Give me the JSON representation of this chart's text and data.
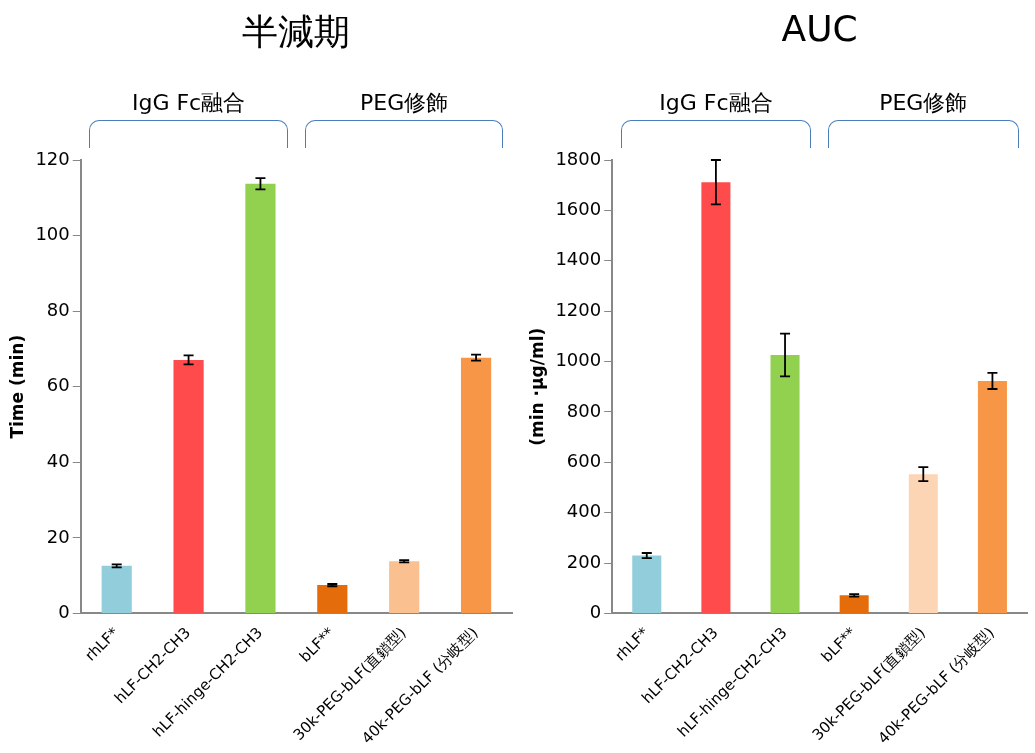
{
  "chart_data": [
    {
      "type": "bar",
      "title": "半減期",
      "ylabel": "Time (min)",
      "annotations": [
        "IgG Fc融合",
        "PEG修飾"
      ],
      "categories": [
        "rhLF*",
        "hLF-CH2-CH3",
        "hLF-hinge-CH2-CH3",
        "bLF**",
        "30k-PEG-bLF(直鎖型)",
        "40k-PEG-bLF (分岐型)"
      ],
      "values": [
        12.6,
        67.1,
        113.7,
        7.5,
        13.8,
        67.7
      ],
      "errors": [
        0.4,
        1.2,
        1.5,
        0.3,
        0.3,
        0.8
      ],
      "colors": [
        "#92cddc",
        "#ff4b4b",
        "#92d050",
        "#e46c0a",
        "#fac090",
        "#f79646"
      ],
      "ylim": [
        0,
        120
      ],
      "yticks": [
        0,
        20,
        40,
        60,
        80,
        100,
        120
      ],
      "grid": false,
      "legend": false
    },
    {
      "type": "bar",
      "title": "AUC",
      "ylabel": "(min ·μg/ml)",
      "annotations": [
        "IgG Fc融合",
        "PEG修飾"
      ],
      "categories": [
        "rhLF*",
        "hLF-CH2-CH3",
        "hLF-hinge-CH2-CH3",
        "bLF**",
        "30k-PEG-bLF(直鎖型)",
        "40k-PEG-bLF (分岐型)"
      ],
      "values": [
        230,
        1712,
        1026,
        72,
        553,
        923
      ],
      "errors": [
        10,
        88,
        85,
        5,
        28,
        32
      ],
      "colors": [
        "#92cddc",
        "#ff4b4b",
        "#92d050",
        "#e46c0a",
        "#fcd5b5",
        "#f79646"
      ],
      "ylim": [
        0,
        1800
      ],
      "yticks": [
        0,
        200,
        400,
        600,
        800,
        1000,
        1200,
        1400,
        1600,
        1800
      ],
      "grid": false,
      "legend": false
    }
  ]
}
